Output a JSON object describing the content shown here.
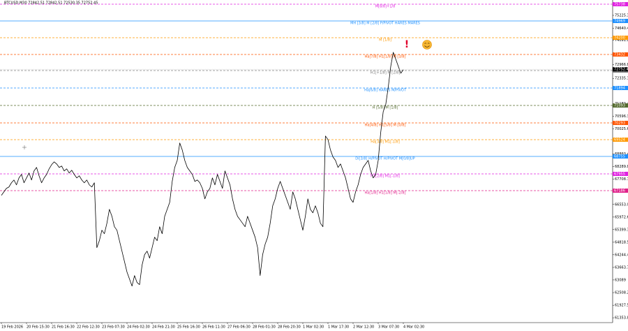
{
  "chart_data": {
    "type": "line",
    "title": "BTCUSD,M30 72842.51 72842.51 72530.35 72752.45",
    "categories": [
      "19 Feb 2026",
      null,
      null,
      null,
      null,
      null,
      null,
      null,
      null,
      null,
      "20 Feb 15:30",
      null,
      null,
      null,
      null,
      null,
      null,
      null,
      null,
      null,
      "21 Feb 16:30",
      null,
      null,
      null,
      null,
      null,
      null,
      null,
      null,
      null,
      "22 Feb 12:30",
      null,
      null,
      null,
      null,
      null,
      null,
      null,
      null,
      null,
      "23 Feb 07:30",
      null,
      null,
      null,
      null,
      null,
      null,
      null,
      null,
      null,
      "24 Feb 02:30",
      null,
      null,
      null,
      null,
      null,
      null,
      null,
      null,
      null,
      "24 Feb 21:30",
      null,
      null,
      null,
      null,
      null,
      null,
      null,
      null,
      null,
      "25 Feb 16:30",
      null,
      null,
      null,
      null,
      null,
      null,
      null,
      null,
      null,
      "26 Feb 11:30",
      null,
      null,
      null,
      null,
      null,
      null,
      null,
      null,
      null,
      "27 Feb 06:30",
      null,
      null,
      null,
      null,
      null,
      null,
      null,
      null,
      null,
      "28 Feb 01:30",
      null,
      null,
      null,
      null,
      null,
      null,
      null,
      null,
      null,
      "28 Feb 20:30",
      null,
      null,
      null,
      null,
      null,
      null,
      null,
      null,
      null,
      "1 Mar 02:30",
      null,
      null,
      null,
      null,
      null,
      null,
      null,
      null,
      null,
      "1 Mar 17:30",
      null,
      null,
      null,
      null,
      null,
      null,
      null,
      null,
      null,
      "2 Mar 12:30",
      null,
      null,
      null,
      null,
      null,
      null,
      null,
      null,
      null,
      "3 Mar 07:30",
      null,
      null,
      null,
      null,
      null,
      null,
      null,
      null,
      null,
      "4 Mar 02:30"
    ],
    "series": [
      {
        "name": "BTCUSD",
        "color": "#000000",
        "values": [
          66970,
          67130,
          67290,
          67354,
          67546,
          67674,
          67450,
          67770,
          67930,
          67546,
          67770,
          67994,
          67674,
          68090,
          68250,
          67866,
          67546,
          67770,
          67930,
          68186,
          68378,
          68506,
          68410,
          68250,
          68314,
          68090,
          68186,
          67994,
          68122,
          67930,
          67770,
          67866,
          67674,
          67546,
          67674,
          67450,
          67354,
          67546,
          64570,
          64890,
          65370,
          65210,
          65690,
          66330,
          66010,
          65530,
          65370,
          64890,
          64410,
          63930,
          63450,
          63130,
          62810,
          63290,
          62970,
          62874,
          63770,
          64250,
          64410,
          64090,
          64570,
          65050,
          64890,
          65530,
          65210,
          66010,
          66330,
          66650,
          67610,
          68250,
          68570,
          69370,
          69050,
          68570,
          68250,
          68090,
          67930,
          67610,
          67674,
          67546,
          67290,
          66810,
          67130,
          67290,
          67770,
          67450,
          67930,
          67610,
          67290,
          68090,
          67770,
          67450,
          66810,
          66330,
          66010,
          65850,
          65690,
          65530,
          66010,
          65690,
          65370,
          65050,
          64570,
          63290,
          64250,
          64730,
          65050,
          65690,
          66490,
          66810,
          67290,
          67610,
          67290,
          66970,
          66650,
          66330,
          67130,
          66810,
          66330,
          65850,
          65370,
          66010,
          66810,
          66330,
          66170,
          66490,
          66170,
          65690,
          65530,
          69690,
          69530,
          69050,
          68730,
          68570,
          68250,
          68410,
          68090,
          67770,
          67290,
          66810,
          66650,
          67130,
          67450,
          67930,
          68250,
          68410,
          68570,
          68090,
          67770,
          67930,
          68570,
          69850,
          70810,
          71130,
          71930,
          72890,
          73530,
          73210,
          72890,
          72570,
          72730
        ]
      }
    ],
    "last_price": 72752.45,
    "ylim": [
      61132,
      75930
    ],
    "yticks": [
      75225.35,
      74640.4,
      74091.8,
      72966.8,
      72335.15,
      71180.4,
      70596.3,
      70025.65,
      68860.45,
      68289.8,
      67708.7,
      66553.05,
      65972.6,
      65399.3,
      64818.5,
      64244.45,
      63663.7,
      63089.0,
      62508.2,
      61927.5,
      61353.85
    ],
    "levels": [
      {
        "label": "M[8/8]+1/8",
        "value": 75738,
        "color": "#e020e0",
        "style": "dashed"
      },
      {
        "label": "MH [3/8] M [2/8] P/PIVOT HARES MARES",
        "value": 74969,
        "color": "#1e90ff",
        "style": "solid"
      },
      {
        "label": "M [1/8]",
        "value": 74200,
        "color": "#ff9900",
        "style": "dashed"
      },
      {
        "label": "Ha[7/8] H1[1/8] M [3/8]",
        "value": 73432,
        "color": "#ff5500",
        "style": "dashed"
      },
      {
        "label": "H1[+1/8] M [2/8]",
        "value": 72695,
        "color": "#808080",
        "style": "dashed"
      },
      {
        "label": "Ha[6/8] HARES M/PIVOT",
        "value": 71894,
        "color": "#1e90ff",
        "style": "dashed"
      },
      {
        "label": "H [5/8] M [1/8]",
        "value": 71093,
        "color": "#556b2f",
        "style": "dashed"
      },
      {
        "label": "Ha[4/8] H1[5/8] M [0/8]",
        "value": 70293,
        "color": "#ff5500",
        "style": "dashed"
      },
      {
        "label": "Ha[3/8] M1[-1/8]",
        "value": 69524,
        "color": "#ff9900",
        "style": "dashed"
      },
      {
        "label": "Di[3/8] H/PIVOT H/PIVOT M[0/8]UP",
        "value": 68755,
        "color": "#1e90ff",
        "style": "solid"
      },
      {
        "label": "H1[2/8] M1[-1/8]",
        "value": 67955,
        "color": "#e020e0",
        "style": "dashed"
      },
      {
        "label": "Ha[1/8] H1[1/8] M[-2/8]",
        "value": 67186,
        "color": "#e0208a",
        "style": "dashed"
      }
    ]
  }
}
